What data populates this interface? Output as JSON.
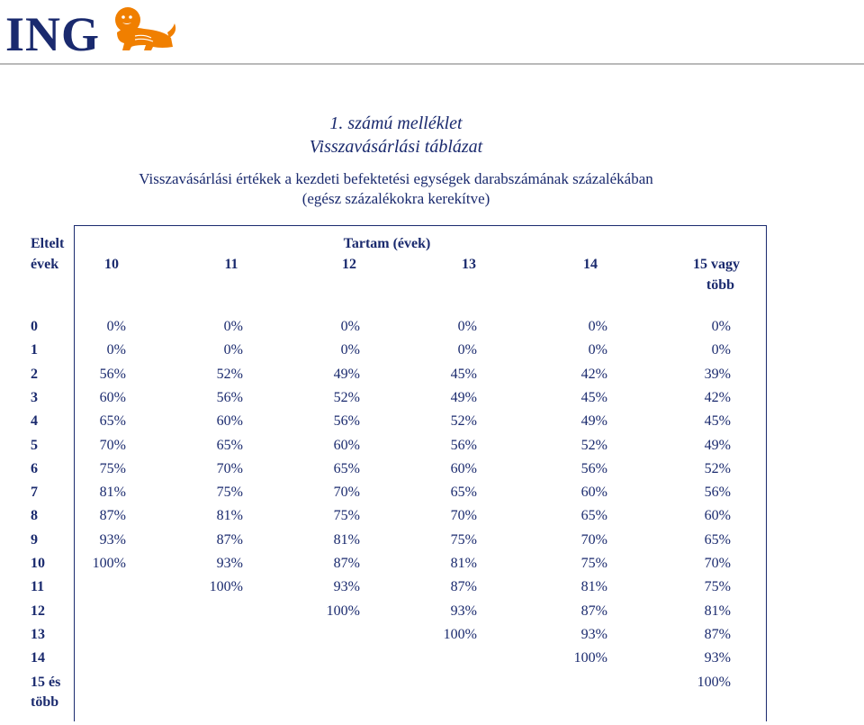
{
  "brand": {
    "name": "ING",
    "orange": "#f07f00",
    "navy": "#1a2a6e"
  },
  "title": {
    "line1": "1. számú melléklet",
    "line2": "Visszavásárlási táblázat"
  },
  "subtitle": {
    "line1": "Visszavásárlási értékek a kezdeti befektetési egységek darabszámának százalékában",
    "line2": "(egész százalékokra kerekítve)"
  },
  "table": {
    "row_header_line1": "Eltelt",
    "row_header_line2": "évek",
    "group_header": "Tartam (évek)",
    "columns": [
      "10",
      "11",
      "12",
      "13",
      "14",
      "15 vagy"
    ],
    "last_column_extra": "több",
    "rows": [
      {
        "label": "0",
        "values": [
          "0%",
          "0%",
          "0%",
          "0%",
          "0%",
          "0%"
        ]
      },
      {
        "label": "1",
        "values": [
          "0%",
          "0%",
          "0%",
          "0%",
          "0%",
          "0%"
        ]
      },
      {
        "label": "2",
        "values": [
          "56%",
          "52%",
          "49%",
          "45%",
          "42%",
          "39%"
        ]
      },
      {
        "label": "3",
        "values": [
          "60%",
          "56%",
          "52%",
          "49%",
          "45%",
          "42%"
        ]
      },
      {
        "label": "4",
        "values": [
          "65%",
          "60%",
          "56%",
          "52%",
          "49%",
          "45%"
        ]
      },
      {
        "label": "5",
        "values": [
          "70%",
          "65%",
          "60%",
          "56%",
          "52%",
          "49%"
        ]
      },
      {
        "label": "6",
        "values": [
          "75%",
          "70%",
          "65%",
          "60%",
          "56%",
          "52%"
        ]
      },
      {
        "label": "7",
        "values": [
          "81%",
          "75%",
          "70%",
          "65%",
          "60%",
          "56%"
        ]
      },
      {
        "label": "8",
        "values": [
          "87%",
          "81%",
          "75%",
          "70%",
          "65%",
          "60%"
        ]
      },
      {
        "label": "9",
        "values": [
          "93%",
          "87%",
          "81%",
          "75%",
          "70%",
          "65%"
        ]
      },
      {
        "label": "10",
        "values": [
          "100%",
          "93%",
          "87%",
          "81%",
          "75%",
          "70%"
        ]
      },
      {
        "label": "11",
        "values": [
          "",
          "100%",
          "93%",
          "87%",
          "81%",
          "75%"
        ]
      },
      {
        "label": "12",
        "values": [
          "",
          "",
          "100%",
          "93%",
          "87%",
          "81%"
        ]
      },
      {
        "label": "13",
        "values": [
          "",
          "",
          "",
          "100%",
          "93%",
          "87%"
        ]
      },
      {
        "label": "14",
        "values": [
          "",
          "",
          "",
          "",
          "100%",
          "93%"
        ]
      },
      {
        "label": "15 és",
        "values": [
          "",
          "",
          "",
          "",
          "",
          "100%"
        ]
      }
    ],
    "last_row_label_extra": "több"
  }
}
